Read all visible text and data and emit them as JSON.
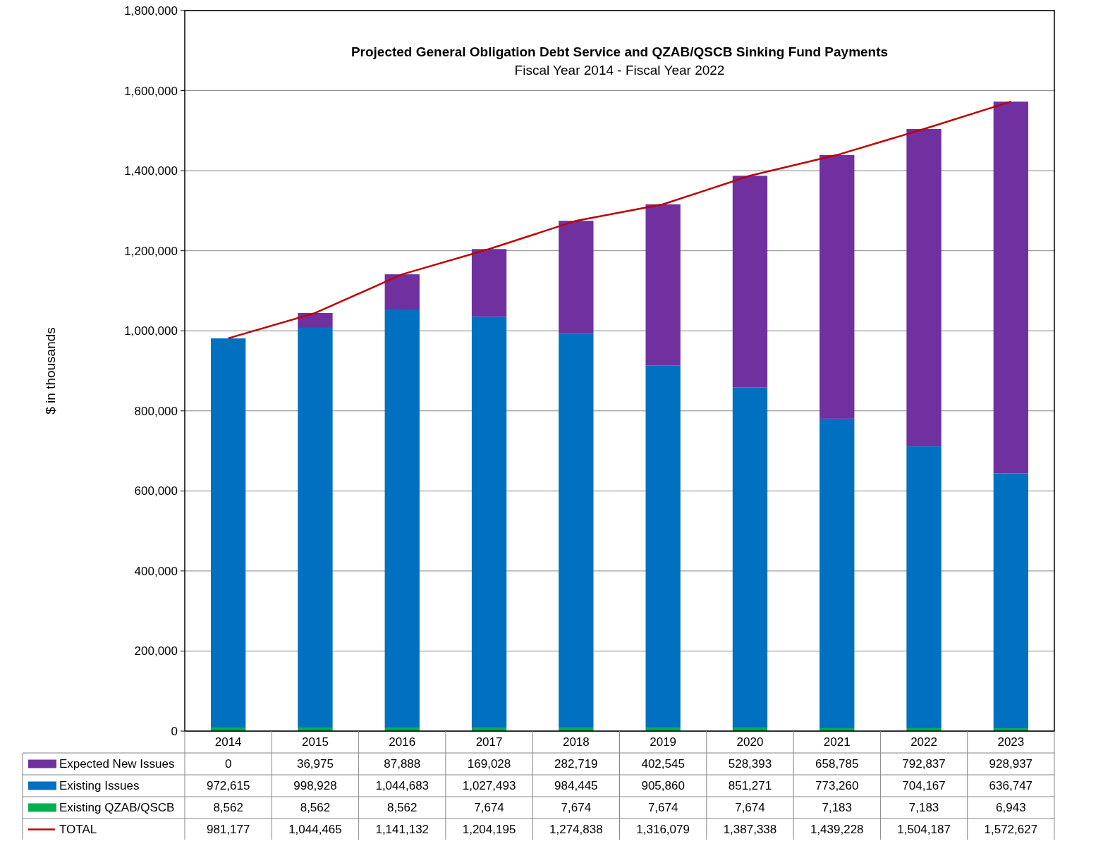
{
  "chart_data": {
    "type": "bar",
    "title": "Projected General Obligation Debt Service and QZAB/QSCB Sinking Fund Payments",
    "subtitle": "Fiscal Year 2014 - Fiscal Year 2022",
    "ylabel": "$ in thousands",
    "categories": [
      "2014",
      "2015",
      "2016",
      "2017",
      "2018",
      "2019",
      "2020",
      "2021",
      "2022",
      "2023"
    ],
    "stacked": true,
    "grid": "y",
    "legend": "bottom",
    "ylim": [
      0,
      1800000
    ],
    "yticks": [
      {
        "value": 0,
        "label": "0"
      },
      {
        "value": 200000,
        "label": "200,000"
      },
      {
        "value": 400000,
        "label": "400,000"
      },
      {
        "value": 600000,
        "label": "600,000"
      },
      {
        "value": 800000,
        "label": "800,000"
      },
      {
        "value": 1000000,
        "label": "1,000,000"
      },
      {
        "value": 1200000,
        "label": "1,200,000"
      },
      {
        "value": 1400000,
        "label": "1,400,000"
      },
      {
        "value": 1600000,
        "label": "1,600,000"
      },
      {
        "value": 1800000,
        "label": "1,800,000"
      }
    ],
    "series": [
      {
        "name": "Existing QZAB/QSCB",
        "color": "#00b050",
        "values": [
          8562,
          8562,
          8562,
          7674,
          7674,
          7674,
          7674,
          7183,
          7183,
          6943
        ],
        "value_labels": [
          "8,562",
          "8,562",
          "8,562",
          "7,674",
          "7,674",
          "7,674",
          "7,674",
          "7,183",
          "7,183",
          "6,943"
        ]
      },
      {
        "name": "Existing Issues",
        "color": "#0070c0",
        "values": [
          972615,
          998928,
          1044683,
          1027493,
          984445,
          905860,
          851271,
          773260,
          704167,
          636747
        ],
        "value_labels": [
          "972,615",
          "998,928",
          "1,044,683",
          "1,027,493",
          "984,445",
          "905,860",
          "851,271",
          "773,260",
          "704,167",
          "636,747"
        ]
      },
      {
        "name": "Expected New Issues",
        "color": "#7030a0",
        "values": [
          0,
          36975,
          87888,
          169028,
          282719,
          402545,
          528393,
          658785,
          792837,
          928937
        ],
        "value_labels": [
          "0",
          "36,975",
          "87,888",
          "169,028",
          "282,719",
          "402,545",
          "528,393",
          "658,785",
          "792,837",
          "928,937"
        ]
      },
      {
        "name": "TOTAL",
        "type": "line",
        "color": "#c00000",
        "line_style": "solid",
        "marker": "none",
        "values": [
          981177,
          1044465,
          1141132,
          1204195,
          1274838,
          1316079,
          1387338,
          1439228,
          1504187,
          1572627
        ],
        "value_labels": [
          "981,177",
          "1,044,465",
          "1,141,132",
          "1,204,195",
          "1,274,838",
          "1,316,079",
          "1,387,338",
          "1,439,228",
          "1,504,187",
          "1,572,627"
        ]
      }
    ]
  }
}
